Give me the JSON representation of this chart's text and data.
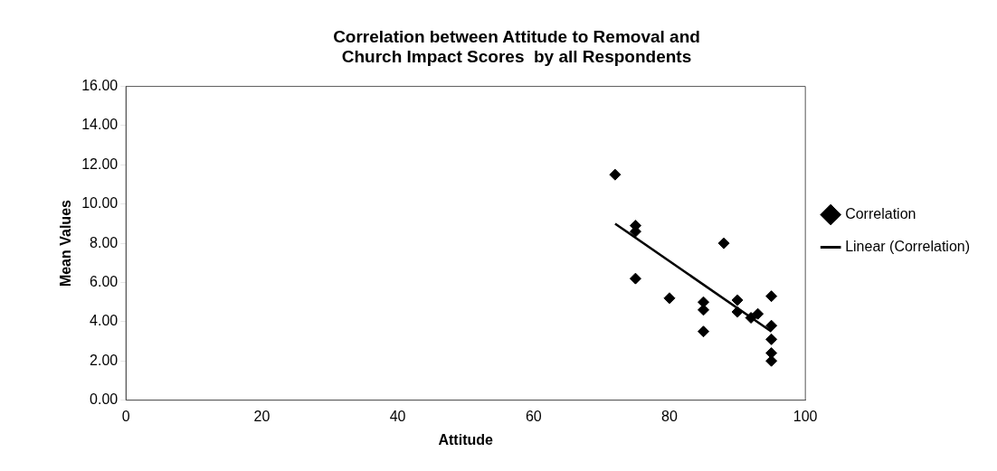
{
  "chart_data": {
    "type": "scatter",
    "title": "Correlation between Attitude to Removal and Church Impact Scores  by all Respondents",
    "xlabel": "Attitude",
    "ylabel": "Mean Values",
    "xlim": [
      0,
      100
    ],
    "xticks": [
      0,
      20,
      40,
      60,
      80,
      100
    ],
    "ylim": [
      0,
      16
    ],
    "yticks": [
      {
        "value": 0,
        "label": "0.00"
      },
      {
        "value": 2,
        "label": "2.00"
      },
      {
        "value": 4,
        "label": "4.00"
      },
      {
        "value": 6,
        "label": "6.00"
      },
      {
        "value": 8,
        "label": "8.00"
      },
      {
        "value": 10,
        "label": "10.00"
      },
      {
        "value": 12,
        "label": "12.00"
      },
      {
        "value": 14,
        "label": "14.00"
      },
      {
        "value": 16,
        "label": "16.00"
      }
    ],
    "grid": false,
    "legend": "right",
    "marker": "diamond",
    "series": [
      {
        "name": "Correlation",
        "color": "#000000",
        "x": [
          72,
          75,
          75,
          75,
          80,
          85,
          85,
          85,
          88,
          90,
          90,
          92,
          93,
          95,
          95,
          95,
          95,
          95
        ],
        "values": [
          11.5,
          8.9,
          8.6,
          6.2,
          5.2,
          5.0,
          4.6,
          3.5,
          8.0,
          5.1,
          4.5,
          4.2,
          4.4,
          5.3,
          3.8,
          3.1,
          2.4,
          2.0
        ]
      },
      {
        "name": "Linear (Correlation)",
        "color": "#000000",
        "type": "line",
        "marker": "none",
        "x": [
          72,
          95
        ],
        "values": [
          9.0,
          3.5
        ]
      }
    ]
  }
}
